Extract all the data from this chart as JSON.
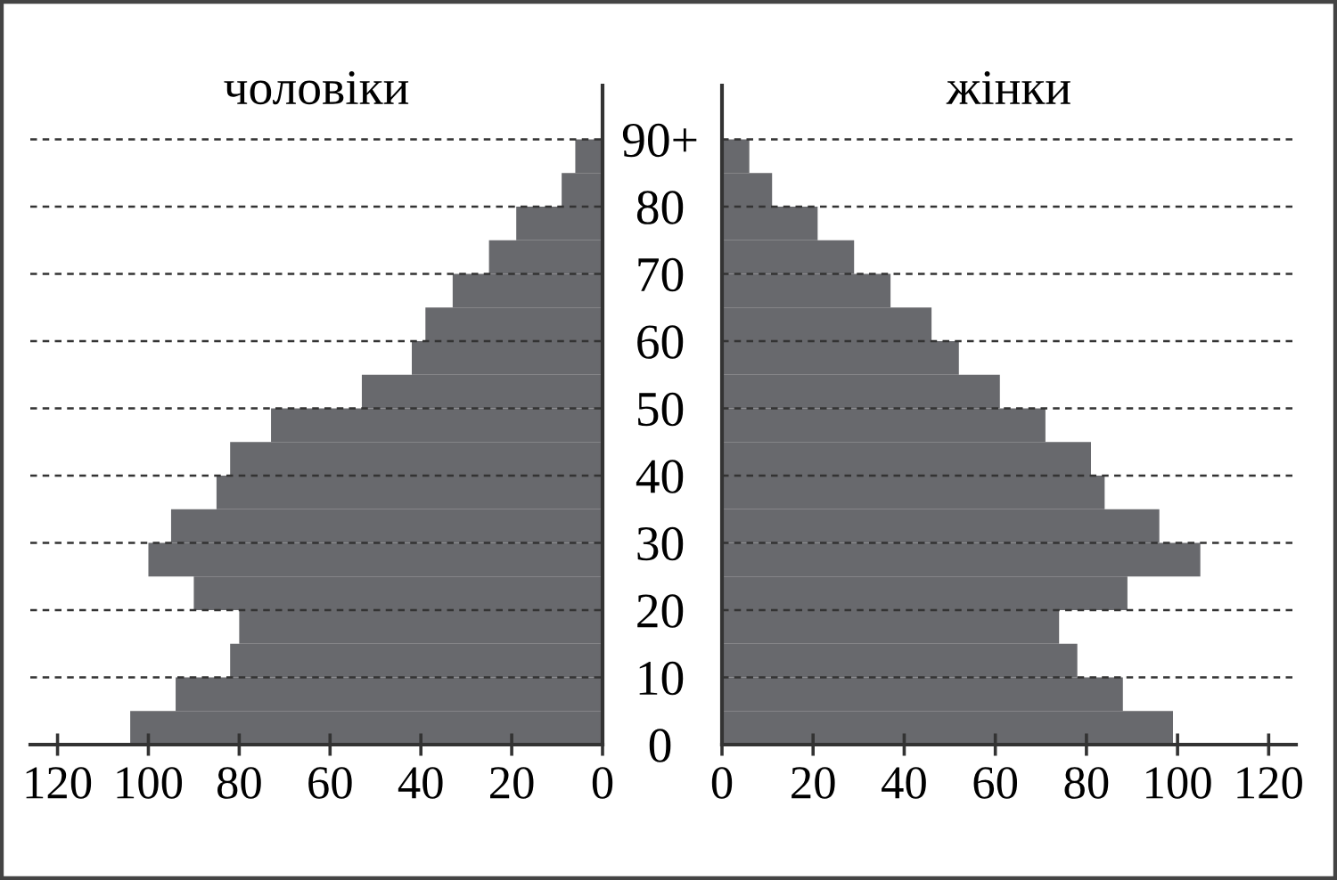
{
  "chart_data": [
    {
      "type": "bar",
      "orientation": "horizontal",
      "title": "чоловіки",
      "x": [
        2.5,
        7.5,
        12.5,
        17.5,
        22.5,
        27.5,
        32.5,
        37.5,
        42.5,
        47.5,
        52.5,
        57.5,
        62.5,
        67.5,
        72.5,
        77.5,
        82.5,
        87.5
      ],
      "values": [
        104,
        94,
        82,
        80,
        90,
        100,
        95,
        85,
        82,
        73,
        53,
        42,
        39,
        33,
        25,
        19,
        9,
        6
      ],
      "color": "#68696d",
      "xlim": [
        126,
        0
      ],
      "xticks": [
        120,
        100,
        80,
        60,
        40,
        20,
        0
      ],
      "ylim": [
        0,
        98
      ],
      "yticks": [
        0,
        10,
        20,
        30,
        40,
        50,
        60,
        70,
        80,
        90
      ],
      "grid": "y",
      "tick_labels": "x"
    },
    {
      "type": "bar",
      "orientation": "horizontal",
      "title": "жінки",
      "x": [
        2.5,
        7.5,
        12.5,
        17.5,
        22.5,
        27.5,
        32.5,
        37.5,
        42.5,
        47.5,
        52.5,
        57.5,
        62.5,
        67.5,
        72.5,
        77.5,
        82.5,
        87.5
      ],
      "values": [
        99,
        88,
        78,
        74,
        89,
        105,
        96,
        84,
        81,
        71,
        61,
        52,
        46,
        37,
        29,
        21,
        11,
        6
      ],
      "color": "#68696d",
      "xlim": [
        0,
        126
      ],
      "xticks": [
        0,
        20,
        40,
        60,
        80,
        100,
        120
      ],
      "ylim": [
        0,
        98
      ],
      "yticks": [
        0,
        10,
        20,
        30,
        40,
        50,
        60,
        70,
        80,
        {
          "value": 90,
          "label": "90+"
        }
      ],
      "grid": "y"
    }
  ]
}
